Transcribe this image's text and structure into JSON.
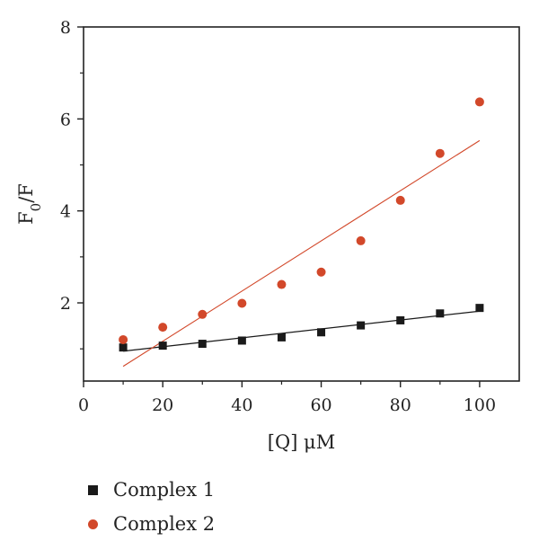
{
  "chart_data": {
    "type": "scatter",
    "xlabel": "[Q] μM",
    "ylabel": "F0/F",
    "xlim": [
      0,
      110
    ],
    "ylim": [
      0.3,
      8
    ],
    "xticks": [
      0,
      20,
      40,
      60,
      80,
      100
    ],
    "yticks": [
      2,
      4,
      6,
      8
    ],
    "grid": false,
    "legend_position": "bottom-left",
    "series": [
      {
        "name": "Complex 1",
        "marker": "square",
        "color": "#1a1a1a",
        "x": [
          10,
          20,
          30,
          40,
          50,
          60,
          70,
          80,
          90,
          100
        ],
        "y": [
          1.03,
          1.07,
          1.11,
          1.18,
          1.25,
          1.36,
          1.51,
          1.62,
          1.77,
          1.89
        ],
        "fit": {
          "x": [
            10,
            100
          ],
          "y": [
            0.95,
            1.82
          ]
        }
      },
      {
        "name": "Complex 2",
        "marker": "circle",
        "color": "#d2482a",
        "x": [
          10,
          20,
          30,
          40,
          50,
          60,
          70,
          80,
          90,
          100
        ],
        "y": [
          1.2,
          1.47,
          1.75,
          1.99,
          2.4,
          2.67,
          3.35,
          4.23,
          5.25,
          6.37
        ],
        "fit": {
          "x": [
            10,
            100
          ],
          "y": [
            0.62,
            5.53
          ]
        }
      }
    ]
  }
}
